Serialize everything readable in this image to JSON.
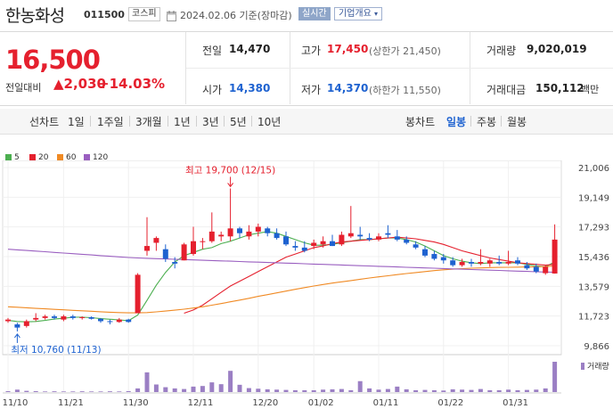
{
  "header": {
    "name": "한농화성",
    "code": "011500",
    "market": "코스피",
    "date_text": "2024.02.06 기준(장마감)",
    "live_label": "실시간",
    "company_label": "기업개요"
  },
  "quote": {
    "price": "16,500",
    "change_label": "전일대비",
    "change": "▲2,030",
    "change_pct": "+14.03%",
    "prev_label": "전일",
    "prev": "14,470",
    "open_label": "시가",
    "open": "14,380",
    "high_label": "고가",
    "high": "17,450",
    "upper_limit": "(상한가 21,450)",
    "low_label": "저가",
    "low": "14,370",
    "lower_limit": "(하한가 11,550)",
    "volume_label": "거래량",
    "volume": "9,020,019",
    "amount_label": "거래대금",
    "amount": "150,112",
    "amount_unit": "백만"
  },
  "toolbar": {
    "line_chart_label": "선차트",
    "periods": [
      "1일",
      "1주일",
      "3개월",
      "1년",
      "3년",
      "5년",
      "10년"
    ],
    "candle_label": "봉차트",
    "candles": [
      "일봉",
      "주봉",
      "월봉"
    ],
    "active_candle": "일봉"
  },
  "colors": {
    "up": "#e5202e",
    "down": "#1e62d0",
    "ma5": "#4caf50",
    "ma20": "#e5202e",
    "ma60": "#f08a24",
    "ma120": "#9a5fc0",
    "volume": "#9b7fc4"
  },
  "chart_data": {
    "type": "candlestick",
    "legend": [
      {
        "label": "5",
        "color": "#4caf50"
      },
      {
        "label": "20",
        "color": "#e5202e"
      },
      {
        "label": "60",
        "color": "#f08a24"
      },
      {
        "label": "120",
        "color": "#9a5fc0"
      }
    ],
    "y_ticks": [
      "21,006",
      "19,149",
      "17,293",
      "15,436",
      "13,579",
      "11,723",
      "9,866"
    ],
    "ylim": [
      9866,
      21006
    ],
    "x_ticks": [
      {
        "i": 0,
        "label": "11/10"
      },
      {
        "i": 6,
        "label": "11/21"
      },
      {
        "i": 13,
        "label": "11/30"
      },
      {
        "i": 20,
        "label": "12/11"
      },
      {
        "i": 27,
        "label": "12/20"
      },
      {
        "i": 33,
        "label": "01/02"
      },
      {
        "i": 40,
        "label": "01/11"
      },
      {
        "i": 47,
        "label": "01/22"
      },
      {
        "i": 54,
        "label": "01/31"
      }
    ],
    "annotations": {
      "max_label": "최고 19,700 (12/15)",
      "max_index": 24,
      "max_value": 19700,
      "min_label": "최저 10,760 (11/13)",
      "min_index": 1,
      "min_value": 10760
    },
    "volume_label": "거래량",
    "candles": [
      {
        "o": 11400,
        "h": 11600,
        "l": 11300,
        "c": 11500
      },
      {
        "o": 11200,
        "h": 11300,
        "l": 10760,
        "c": 11000
      },
      {
        "o": 11100,
        "h": 11500,
        "l": 11000,
        "c": 11400
      },
      {
        "o": 11500,
        "h": 11900,
        "l": 11400,
        "c": 11600
      },
      {
        "o": 11600,
        "h": 11800,
        "l": 11500,
        "c": 11700
      },
      {
        "o": 11700,
        "h": 11800,
        "l": 11500,
        "c": 11600
      },
      {
        "o": 11500,
        "h": 11800,
        "l": 11400,
        "c": 11700
      },
      {
        "o": 11700,
        "h": 11800,
        "l": 11500,
        "c": 11600
      },
      {
        "o": 11600,
        "h": 11700,
        "l": 11500,
        "c": 11650
      },
      {
        "o": 11650,
        "h": 11700,
        "l": 11500,
        "c": 11550
      },
      {
        "o": 11550,
        "h": 11600,
        "l": 11300,
        "c": 11400
      },
      {
        "o": 11400,
        "h": 11500,
        "l": 11200,
        "c": 11350
      },
      {
        "o": 11350,
        "h": 11600,
        "l": 11300,
        "c": 11500
      },
      {
        "o": 11500,
        "h": 11550,
        "l": 11300,
        "c": 11350
      },
      {
        "o": 11900,
        "h": 14400,
        "l": 11900,
        "c": 14300
      },
      {
        "o": 15800,
        "h": 17900,
        "l": 15500,
        "c": 16100
      },
      {
        "o": 16300,
        "h": 16700,
        "l": 15800,
        "c": 16600
      },
      {
        "o": 15900,
        "h": 16200,
        "l": 15100,
        "c": 15300
      },
      {
        "o": 15100,
        "h": 15400,
        "l": 14700,
        "c": 15000
      },
      {
        "o": 15200,
        "h": 16300,
        "l": 15200,
        "c": 16200
      },
      {
        "o": 15600,
        "h": 17300,
        "l": 15500,
        "c": 16400
      },
      {
        "o": 16400,
        "h": 16600,
        "l": 15900,
        "c": 16400
      },
      {
        "o": 16400,
        "h": 18200,
        "l": 16300,
        "c": 17000
      },
      {
        "o": 16700,
        "h": 17000,
        "l": 16400,
        "c": 16800
      },
      {
        "o": 16700,
        "h": 19700,
        "l": 16400,
        "c": 17200
      },
      {
        "o": 17200,
        "h": 17300,
        "l": 16600,
        "c": 16900
      },
      {
        "o": 16700,
        "h": 17400,
        "l": 16500,
        "c": 17000
      },
      {
        "o": 17000,
        "h": 17500,
        "l": 16700,
        "c": 17300
      },
      {
        "o": 17200,
        "h": 17300,
        "l": 16700,
        "c": 16900
      },
      {
        "o": 16900,
        "h": 17200,
        "l": 16500,
        "c": 16600
      },
      {
        "o": 16700,
        "h": 17000,
        "l": 16100,
        "c": 16200
      },
      {
        "o": 16100,
        "h": 16400,
        "l": 15800,
        "c": 16000
      },
      {
        "o": 16000,
        "h": 16400,
        "l": 15700,
        "c": 15800
      },
      {
        "o": 16100,
        "h": 16500,
        "l": 15900,
        "c": 16300
      },
      {
        "o": 16200,
        "h": 16700,
        "l": 16000,
        "c": 16400
      },
      {
        "o": 16400,
        "h": 16800,
        "l": 16100,
        "c": 16100
      },
      {
        "o": 16200,
        "h": 17000,
        "l": 16100,
        "c": 16800
      },
      {
        "o": 16700,
        "h": 18600,
        "l": 16600,
        "c": 16900
      },
      {
        "o": 16800,
        "h": 17300,
        "l": 16500,
        "c": 16700
      },
      {
        "o": 16600,
        "h": 16900,
        "l": 16400,
        "c": 16500
      },
      {
        "o": 16500,
        "h": 16900,
        "l": 16400,
        "c": 16700
      },
      {
        "o": 16900,
        "h": 17400,
        "l": 16600,
        "c": 16800
      },
      {
        "o": 16700,
        "h": 17100,
        "l": 16400,
        "c": 16500
      },
      {
        "o": 16500,
        "h": 16700,
        "l": 16200,
        "c": 16300
      },
      {
        "o": 16200,
        "h": 16400,
        "l": 15900,
        "c": 16000
      },
      {
        "o": 15900,
        "h": 16100,
        "l": 15400,
        "c": 15500
      },
      {
        "o": 15600,
        "h": 15800,
        "l": 15200,
        "c": 15300
      },
      {
        "o": 15400,
        "h": 15600,
        "l": 15000,
        "c": 15200
      },
      {
        "o": 15200,
        "h": 15400,
        "l": 14800,
        "c": 14900
      },
      {
        "o": 14900,
        "h": 15300,
        "l": 14800,
        "c": 15100
      },
      {
        "o": 15100,
        "h": 15300,
        "l": 14800,
        "c": 15000
      },
      {
        "o": 15000,
        "h": 15900,
        "l": 14900,
        "c": 15100
      },
      {
        "o": 15000,
        "h": 15300,
        "l": 14800,
        "c": 15200
      },
      {
        "o": 15100,
        "h": 15500,
        "l": 14900,
        "c": 15000
      },
      {
        "o": 15000,
        "h": 15800,
        "l": 14900,
        "c": 15100
      },
      {
        "o": 15200,
        "h": 15400,
        "l": 14900,
        "c": 15000
      },
      {
        "o": 14900,
        "h": 15100,
        "l": 14600,
        "c": 14700
      },
      {
        "o": 14800,
        "h": 15000,
        "l": 14400,
        "c": 14500
      },
      {
        "o": 14400,
        "h": 14900,
        "l": 14300,
        "c": 14800
      },
      {
        "o": 14380,
        "h": 17450,
        "l": 14370,
        "c": 16500
      }
    ],
    "volume": [
      30,
      80,
      40,
      30,
      20,
      25,
      20,
      20,
      25,
      20,
      20,
      25,
      20,
      30,
      120,
      650,
      250,
      160,
      120,
      100,
      180,
      200,
      320,
      260,
      700,
      240,
      130,
      110,
      90,
      80,
      70,
      60,
      60,
      60,
      80,
      90,
      100,
      60,
      360,
      120,
      80,
      100,
      180,
      90,
      60,
      70,
      60,
      50,
      90,
      80,
      70,
      100,
      60,
      60,
      80,
      60,
      70,
      80,
      120,
      1000
    ],
    "series": [
      {
        "name": "5",
        "values": [
          11450,
          11380,
          11360,
          11380,
          11450,
          11530,
          11580,
          11650,
          11650,
          11620,
          11560,
          11520,
          11480,
          11430,
          11780,
          12700,
          13650,
          14450,
          15100,
          15500,
          15700,
          15900,
          16000,
          16250,
          16400,
          16600,
          16800,
          16900,
          17000,
          16900,
          16700,
          16500,
          16300,
          16150,
          16150,
          16200,
          16300,
          16400,
          16500,
          16500,
          16550,
          16600,
          16600,
          16500,
          16350,
          16100,
          15800,
          15500,
          15300,
          15150,
          15050,
          15000,
          15050,
          15050,
          15050,
          15050,
          14950,
          14850,
          14800,
          15100
        ]
      },
      {
        "name": "20",
        "values": [
          null,
          null,
          null,
          null,
          null,
          null,
          null,
          null,
          null,
          null,
          null,
          null,
          null,
          null,
          null,
          null,
          null,
          null,
          null,
          11900,
          12100,
          12400,
          12800,
          13200,
          13600,
          13900,
          14200,
          14500,
          14800,
          15100,
          15400,
          15600,
          15800,
          16000,
          16100,
          16250,
          16350,
          16400,
          16450,
          16500,
          16550,
          16600,
          16650,
          16600,
          16550,
          16450,
          16350,
          16200,
          16000,
          15800,
          15650,
          15500,
          15350,
          15250,
          15150,
          15050,
          15000,
          14950,
          14900,
          14950
        ]
      },
      {
        "name": "60",
        "values": [
          12300,
          12270,
          12240,
          12200,
          12170,
          12140,
          12110,
          12080,
          12050,
          12020,
          11990,
          11960,
          11940,
          11920,
          11920,
          11940,
          11980,
          12030,
          12090,
          12150,
          12220,
          12300,
          12400,
          12500,
          12610,
          12720,
          12830,
          12950,
          13060,
          13170,
          13280,
          13390,
          13500,
          13600,
          13690,
          13780,
          13860,
          13940,
          14020,
          14100,
          14170,
          14240,
          14310,
          14380,
          14440,
          14500,
          14560,
          14610,
          14650,
          14680,
          14710,
          14730,
          14750,
          14760,
          14770,
          14780,
          14790,
          14800,
          14810,
          14850
        ]
      },
      {
        "name": "120",
        "values": [
          15900,
          15860,
          15820,
          15780,
          15740,
          15700,
          15660,
          15620,
          15580,
          15540,
          15500,
          15460,
          15420,
          15380,
          15350,
          15330,
          15310,
          15290,
          15270,
          15250,
          15230,
          15210,
          15190,
          15170,
          15150,
          15130,
          15110,
          15090,
          15070,
          15050,
          15030,
          15010,
          14990,
          14970,
          14950,
          14930,
          14910,
          14890,
          14870,
          14850,
          14830,
          14810,
          14790,
          14770,
          14750,
          14730,
          14710,
          14690,
          14670,
          14650,
          14630,
          14610,
          14590,
          14570,
          14550,
          14530,
          14510,
          14490,
          14470,
          14460
        ]
      }
    ]
  }
}
